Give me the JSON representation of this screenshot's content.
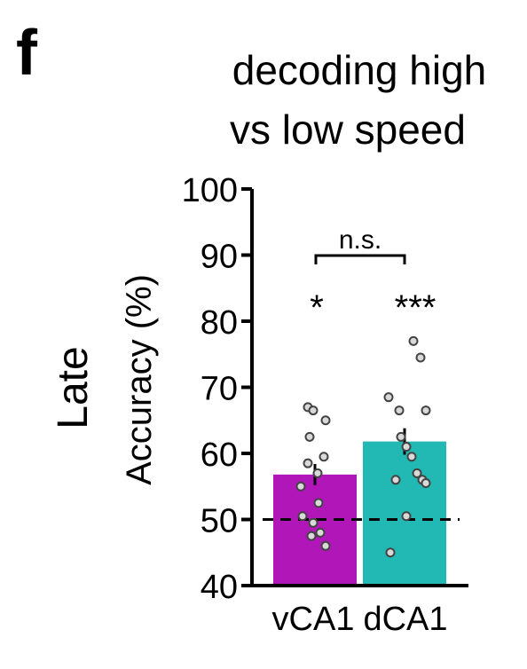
{
  "panel_letter": "f",
  "chart_data": {
    "type": "bar",
    "title_lines": [
      "decoding high",
      "vs low speed"
    ],
    "row_label": "Late",
    "row_label_color": "#a3282a",
    "ylabel": "Accuracy (%)",
    "ylim": [
      40,
      100
    ],
    "yticks": [
      40,
      50,
      60,
      70,
      80,
      90,
      100
    ],
    "categories": [
      "vCA1",
      "dCA1"
    ],
    "values": [
      56.8,
      61.8
    ],
    "errors": [
      1.6,
      2.0
    ],
    "colors": [
      "#b016b8",
      "#22b8b3"
    ],
    "chance_level": 50,
    "significance": [
      "*",
      "***"
    ],
    "comparison_label": "n.s.",
    "points": [
      [
        67.0,
        66.5,
        65.0,
        62.5,
        59.5,
        58.5,
        57.0,
        55.0,
        52.5,
        50.5,
        49.5,
        48.0,
        47.5,
        46.0
      ],
      [
        77.0,
        74.5,
        68.5,
        66.5,
        66.5,
        62.5,
        61.0,
        59.5,
        57.0,
        56.0,
        56.0,
        55.5,
        50.5,
        45.0
      ]
    ],
    "grid": false,
    "legend": "none"
  }
}
